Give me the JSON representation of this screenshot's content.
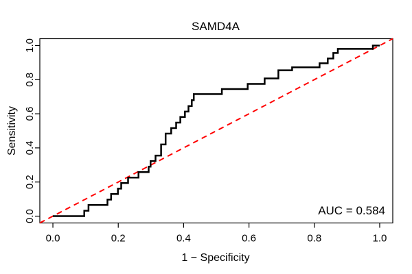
{
  "title": "SAMD4A",
  "annotation": {
    "auc_label": "AUC = 0.584"
  },
  "axes": {
    "x": {
      "label": "1 − Specificity",
      "tick_labels": [
        "0.0",
        "0.2",
        "0.4",
        "0.6",
        "0.8",
        "1.0"
      ],
      "tick_values": [
        0,
        0.2,
        0.4,
        0.6,
        0.8,
        1.0
      ]
    },
    "y": {
      "label": "Sensitivity",
      "tick_labels": [
        "0.0",
        "0.2",
        "0.4",
        "0.6",
        "0.8",
        "1.0"
      ],
      "tick_values": [
        0,
        0.2,
        0.4,
        0.6,
        0.8,
        1.0
      ]
    }
  },
  "colors": {
    "curve": "#000000",
    "diagonal": "#ff0000",
    "box": "#000000",
    "background": "#ffffff"
  },
  "chart_data": {
    "type": "line",
    "title": "SAMD4A",
    "xlabel": "1 − Specificity",
    "ylabel": "Sensitivity",
    "xlim": [
      -0.04,
      1.04
    ],
    "ylim": [
      -0.04,
      1.04
    ],
    "grid": false,
    "legend": null,
    "auc": 0.584,
    "series": [
      {
        "name": "ROC curve",
        "color": "#000000",
        "style": "step-solid",
        "points": [
          [
            0.0,
            0.0
          ],
          [
            0.096,
            0.0
          ],
          [
            0.096,
            0.032
          ],
          [
            0.109,
            0.032
          ],
          [
            0.109,
            0.065
          ],
          [
            0.167,
            0.065
          ],
          [
            0.167,
            0.097
          ],
          [
            0.178,
            0.097
          ],
          [
            0.178,
            0.13
          ],
          [
            0.199,
            0.13
          ],
          [
            0.199,
            0.161
          ],
          [
            0.209,
            0.161
          ],
          [
            0.209,
            0.194
          ],
          [
            0.23,
            0.194
          ],
          [
            0.23,
            0.226
          ],
          [
            0.262,
            0.226
          ],
          [
            0.262,
            0.258
          ],
          [
            0.293,
            0.258
          ],
          [
            0.293,
            0.29
          ],
          [
            0.299,
            0.29
          ],
          [
            0.299,
            0.323
          ],
          [
            0.314,
            0.323
          ],
          [
            0.314,
            0.355
          ],
          [
            0.331,
            0.355
          ],
          [
            0.331,
            0.42
          ],
          [
            0.345,
            0.42
          ],
          [
            0.345,
            0.484
          ],
          [
            0.362,
            0.484
          ],
          [
            0.362,
            0.516
          ],
          [
            0.377,
            0.516
          ],
          [
            0.377,
            0.548
          ],
          [
            0.39,
            0.548
          ],
          [
            0.39,
            0.581
          ],
          [
            0.404,
            0.581
          ],
          [
            0.404,
            0.613
          ],
          [
            0.415,
            0.613
          ],
          [
            0.415,
            0.645
          ],
          [
            0.425,
            0.645
          ],
          [
            0.425,
            0.68
          ],
          [
            0.431,
            0.68
          ],
          [
            0.431,
            0.715
          ],
          [
            0.517,
            0.715
          ],
          [
            0.517,
            0.745
          ],
          [
            0.596,
            0.745
          ],
          [
            0.596,
            0.775
          ],
          [
            0.648,
            0.775
          ],
          [
            0.648,
            0.807
          ],
          [
            0.69,
            0.807
          ],
          [
            0.69,
            0.855
          ],
          [
            0.732,
            0.855
          ],
          [
            0.732,
            0.872
          ],
          [
            0.816,
            0.872
          ],
          [
            0.816,
            0.896
          ],
          [
            0.841,
            0.896
          ],
          [
            0.841,
            0.924
          ],
          [
            0.858,
            0.924
          ],
          [
            0.858,
            0.956
          ],
          [
            0.872,
            0.956
          ],
          [
            0.872,
            0.98
          ],
          [
            0.979,
            0.98
          ],
          [
            0.979,
            1.0
          ],
          [
            1.0,
            1.0
          ]
        ]
      },
      {
        "name": "chance diagonal",
        "color": "#ff0000",
        "style": "dashed",
        "points": [
          [
            -0.04,
            -0.04
          ],
          [
            1.04,
            1.04
          ]
        ]
      }
    ]
  }
}
